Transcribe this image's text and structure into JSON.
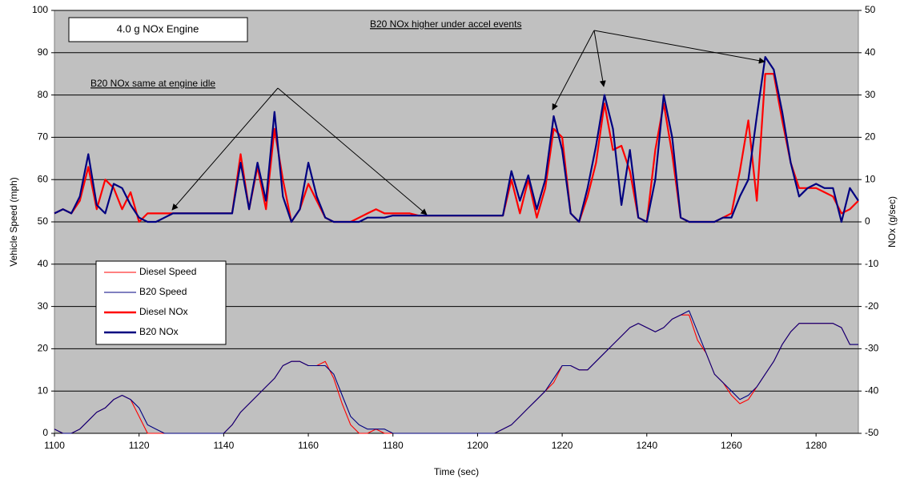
{
  "chart_data": {
    "type": "line",
    "title": "4.0 g NOx Engine",
    "annotations": [
      "B20 NOx higher under accel events",
      "B20 NOx same at engine idle"
    ],
    "x_label": "Time (sec)",
    "y_label": "Vehicle Speed (mph)",
    "y2_label": "NOx (g/sec)",
    "x": [
      1100,
      1102,
      1104,
      1106,
      1108,
      1110,
      1112,
      1114,
      1116,
      1118,
      1120,
      1122,
      1124,
      1126,
      1128,
      1130,
      1132,
      1134,
      1136,
      1138,
      1140,
      1142,
      1144,
      1146,
      1148,
      1150,
      1152,
      1154,
      1156,
      1158,
      1160,
      1162,
      1164,
      1166,
      1168,
      1170,
      1172,
      1174,
      1176,
      1178,
      1180,
      1182,
      1184,
      1186,
      1188,
      1190,
      1192,
      1194,
      1196,
      1198,
      1200,
      1202,
      1204,
      1206,
      1208,
      1210,
      1212,
      1214,
      1216,
      1218,
      1220,
      1222,
      1224,
      1226,
      1228,
      1230,
      1232,
      1234,
      1236,
      1238,
      1240,
      1242,
      1244,
      1246,
      1248,
      1250,
      1252,
      1254,
      1256,
      1258,
      1260,
      1262,
      1264,
      1266,
      1268,
      1270,
      1272,
      1274,
      1276,
      1278,
      1280,
      1282,
      1284,
      1286,
      1288,
      1290
    ],
    "series": [
      {
        "name": "Diesel Speed",
        "color": "#ff0000",
        "axis": "y",
        "values": [
          1,
          0,
          0,
          1,
          3,
          5,
          6,
          8,
          9,
          8,
          4,
          0,
          0,
          0,
          0,
          0,
          0,
          0,
          0,
          0,
          0,
          2,
          5,
          7,
          9,
          11,
          13,
          16,
          17,
          17,
          16,
          16,
          17,
          13,
          7,
          2,
          0,
          0,
          1,
          0,
          0,
          0,
          0,
          0,
          0,
          0,
          0,
          0,
          0,
          0,
          0,
          0,
          0,
          1,
          2,
          4,
          6,
          8,
          10,
          12,
          16,
          16,
          15,
          15,
          17,
          19,
          21,
          23,
          25,
          26,
          25,
          24,
          25,
          27,
          28,
          28,
          22,
          19,
          14,
          12,
          9,
          7,
          8,
          11,
          14,
          17,
          21,
          24,
          26,
          26,
          26,
          26,
          26,
          25,
          21,
          21
        ]
      },
      {
        "name": "B20 Speed",
        "color": "#000080",
        "axis": "y",
        "values": [
          1,
          0,
          0,
          1,
          3,
          5,
          6,
          8,
          9,
          8,
          6,
          2,
          1,
          0,
          0,
          0,
          0,
          0,
          0,
          0,
          0,
          2,
          5,
          7,
          9,
          11,
          13,
          16,
          17,
          17,
          16,
          16,
          16,
          14,
          9,
          4,
          2,
          1,
          1,
          1,
          0,
          0,
          0,
          0,
          0,
          0,
          0,
          0,
          0,
          0,
          0,
          0,
          0,
          1,
          2,
          4,
          6,
          8,
          10,
          13,
          16,
          16,
          15,
          15,
          17,
          19,
          21,
          23,
          25,
          26,
          25,
          24,
          25,
          27,
          28,
          29,
          24,
          19,
          14,
          12,
          10,
          8,
          9,
          11,
          14,
          17,
          21,
          24,
          26,
          26,
          26,
          26,
          26,
          25,
          21,
          21
        ]
      },
      {
        "name": "Diesel NOx",
        "color": "#ff0000",
        "axis": "y2",
        "values": [
          2,
          3,
          2,
          5,
          13,
          3,
          10,
          8,
          3,
          7,
          0,
          2,
          2,
          2,
          2,
          2,
          2,
          2,
          2,
          2,
          2,
          2,
          16,
          3,
          13,
          3,
          22,
          10,
          0,
          3,
          9,
          5,
          1,
          0,
          0,
          0,
          1,
          2,
          3,
          2,
          2,
          2,
          2,
          1.5,
          1.5,
          1.5,
          1.5,
          1.5,
          1.5,
          1.5,
          1.5,
          1.5,
          1.5,
          1.5,
          10,
          2,
          10,
          1,
          8,
          22,
          20,
          2,
          0,
          6,
          14,
          28,
          17,
          18,
          12,
          1,
          0,
          17,
          28,
          16,
          1,
          0,
          0,
          0,
          0,
          1,
          2,
          12,
          24,
          5,
          35,
          35,
          24,
          14,
          8,
          8,
          8,
          7,
          6,
          2,
          3,
          5
        ]
      },
      {
        "name": "B20 NOx",
        "color": "#000080",
        "axis": "y2",
        "values": [
          2,
          3,
          2,
          6,
          16,
          4,
          2,
          9,
          8,
          4,
          1,
          0,
          0,
          1,
          2,
          2,
          2,
          2,
          2,
          2,
          2,
          2,
          14,
          3,
          14,
          5,
          26,
          6,
          0,
          3,
          14,
          6,
          1,
          0,
          0,
          0,
          0,
          1,
          1,
          1,
          1.5,
          1.5,
          1.5,
          1.5,
          1.5,
          1.5,
          1.5,
          1.5,
          1.5,
          1.5,
          1.5,
          1.5,
          1.5,
          1.5,
          12,
          5,
          11,
          3,
          10,
          25,
          17,
          2,
          0,
          8,
          18,
          30,
          22,
          4,
          17,
          1,
          0,
          10,
          30,
          20,
          1,
          0,
          0,
          0,
          0,
          1,
          1,
          6,
          10,
          25,
          39,
          36,
          26,
          14,
          6,
          8,
          9,
          8,
          8,
          0,
          8,
          5
        ]
      }
    ],
    "xlim": [
      1100,
      1290
    ],
    "xticks": [
      1100,
      1120,
      1140,
      1160,
      1180,
      1200,
      1220,
      1240,
      1260,
      1280
    ],
    "ylim": [
      0,
      100
    ],
    "yticks": [
      0,
      10,
      20,
      30,
      40,
      50,
      60,
      70,
      80,
      90,
      100
    ],
    "y2lim": [
      -50,
      50
    ],
    "y2ticks": [
      -50,
      -40,
      -30,
      -20,
      -10,
      0,
      10,
      20,
      30,
      40,
      50
    ],
    "grid": true
  }
}
